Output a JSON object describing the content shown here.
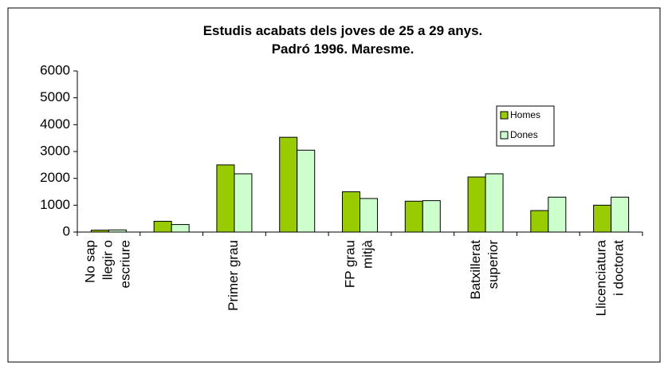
{
  "chart_data": {
    "type": "bar",
    "title": "Estudis acabats dels joves de 25 a 29 anys.\nPadró 1996. Maresme.",
    "categories": [
      "No sap\nllegir o\nescriure",
      null,
      "Primer grau",
      null,
      "FP grau\nmitjà",
      null,
      "Batxillerat\nsuperior",
      null,
      "Llicenciatura\ni doctorat"
    ],
    "series": [
      {
        "name": "Homes",
        "color": "#99cc00",
        "values": [
          70,
          400,
          2500,
          3530,
          1500,
          1150,
          2050,
          800,
          1000
        ]
      },
      {
        "name": "Dones",
        "color": "#ccffcc",
        "values": [
          80,
          280,
          2170,
          3050,
          1250,
          1170,
          2170,
          1300,
          1300
        ]
      }
    ],
    "ylim": [
      0,
      6000
    ],
    "yticks": [
      0,
      1000,
      2000,
      3000,
      4000,
      5000,
      6000
    ],
    "grid": false,
    "legend": "upper-right"
  }
}
